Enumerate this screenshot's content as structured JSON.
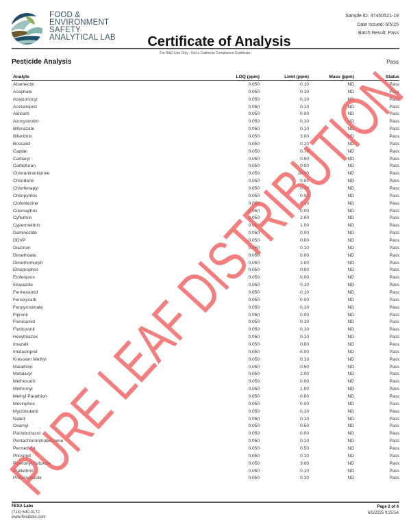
{
  "header": {
    "lab_name_lines": [
      "FOOD &",
      "ENVIRONMENT",
      "SAFETY",
      "ANALYTICAL LAB"
    ],
    "sample_id": "Sample ID: 47450521-19",
    "date_issued": "Date Issued: 6/5/25",
    "batch_result": "Batch Result: Pass",
    "title": "Certificate of Analysis",
    "disclaimer": "For R&D Use Only - Not a California Compliance Certificate."
  },
  "section": {
    "title": "Pesticide Analysis",
    "result": "Pass"
  },
  "table": {
    "columns": [
      "Analyte",
      "LOQ (ppm)",
      "Limit (ppm)",
      "Mass (ppm)",
      "Status"
    ],
    "rows": [
      [
        "Abamectin",
        "0.050",
        "0.10",
        "ND",
        "Pass"
      ],
      [
        "Acephate",
        "0.050",
        "0.10",
        "ND",
        "Pass"
      ],
      [
        "Acequinocyl",
        "0.050",
        "0.10",
        "ND",
        "Pass"
      ],
      [
        "Acetamiprid",
        "0.050",
        "0.10",
        "ND",
        "Pass"
      ],
      [
        "Aldicarb",
        "0.050",
        "0.00",
        "ND",
        "Pass"
      ],
      [
        "Azoxystrobin",
        "0.050",
        "0.10",
        "ND",
        "Pass"
      ],
      [
        "Bifenazate",
        "0.050",
        "0.10",
        "ND",
        "Pass"
      ],
      [
        "Bifenthrin",
        "0.050",
        "3.00",
        "ND",
        "Pass"
      ],
      [
        "Boscalid",
        "0.050",
        "0.10",
        "ND",
        "Pass"
      ],
      [
        "Captan",
        "0.050",
        "0.70",
        "ND",
        "Pass"
      ],
      [
        "Carbaryl",
        "0.050",
        "0.50",
        "ND",
        "Pass"
      ],
      [
        "Carbofuran",
        "0.050",
        "0.00",
        "ND",
        "Pass"
      ],
      [
        "Chlorantraniliprole",
        "0.050",
        "10.00",
        "ND",
        "Pass"
      ],
      [
        "Chlordane",
        "0.050",
        "0.00",
        "ND",
        "Pass"
      ],
      [
        "Chlorfenapyr",
        "0.050",
        "0.00",
        "ND",
        "Pass"
      ],
      [
        "Chlorpyrifos",
        "0.050",
        "0.00",
        "ND",
        "Pass"
      ],
      [
        "Clofentezine",
        "0.050",
        "0.10",
        "ND",
        "Pass"
      ],
      [
        "Coumaphos",
        "0.050",
        "0.00",
        "ND",
        "Pass"
      ],
      [
        "Cyfluthrin",
        "0.050",
        "2.00",
        "ND",
        "Pass"
      ],
      [
        "Cypermethrin",
        "0.050",
        "1.00",
        "ND",
        "Pass"
      ],
      [
        "Daminozide",
        "0.050",
        "0.00",
        "ND",
        "Pass"
      ],
      [
        "DDVP",
        "0.050",
        "0.00",
        "ND",
        "Pass"
      ],
      [
        "Diazinon",
        "0.050",
        "0.10",
        "ND",
        "Pass"
      ],
      [
        "Dimethoate",
        "0.050",
        "0.00",
        "ND",
        "Pass"
      ],
      [
        "Dimethomorph",
        "0.050",
        "2.00",
        "ND",
        "Pass"
      ],
      [
        "Ethoprophos",
        "0.050",
        "0.00",
        "ND",
        "Pass"
      ],
      [
        "Etofenprox",
        "0.050",
        "0.00",
        "ND",
        "Pass"
      ],
      [
        "Etoxazole",
        "0.050",
        "0.10",
        "ND",
        "Pass"
      ],
      [
        "Fenhexamid",
        "0.050",
        "0.10",
        "ND",
        "Pass"
      ],
      [
        "Fenoxycarb",
        "0.050",
        "0.00",
        "ND",
        "Pass"
      ],
      [
        "Fenpyroximate",
        "0.050",
        "0.10",
        "ND",
        "Pass"
      ],
      [
        "Fipronil",
        "0.050",
        "0.00",
        "ND",
        "Pass"
      ],
      [
        "Flonicamid",
        "0.050",
        "0.10",
        "ND",
        "Pass"
      ],
      [
        "Fludioxonil",
        "0.050",
        "0.10",
        "ND",
        "Pass"
      ],
      [
        "Hexythiazox",
        "0.050",
        "0.10",
        "ND",
        "Pass"
      ],
      [
        "Imazalil",
        "0.050",
        "0.00",
        "ND",
        "Pass"
      ],
      [
        "Imidacloprid",
        "0.050",
        "5.00",
        "ND",
        "Pass"
      ],
      [
        "Kresoxim Methyl",
        "0.050",
        "0.10",
        "ND",
        "Pass"
      ],
      [
        "Malathion",
        "0.050",
        "0.50",
        "ND",
        "Pass"
      ],
      [
        "Metalaxyl",
        "0.050",
        "2.00",
        "ND",
        "Pass"
      ],
      [
        "Methiocarb",
        "0.050",
        "0.00",
        "ND",
        "Pass"
      ],
      [
        "Methomyl",
        "0.050",
        "1.00",
        "ND",
        "Pass"
      ],
      [
        "Methyl Parathion",
        "0.050",
        "0.00",
        "ND",
        "Pass"
      ],
      [
        "Mevinphos",
        "0.050",
        "0.00",
        "ND",
        "Pass"
      ],
      [
        "Myclobutanil",
        "0.050",
        "0.10",
        "ND",
        "Pass"
      ],
      [
        "Naled",
        "0.050",
        "0.10",
        "ND",
        "Pass"
      ],
      [
        "Oxamyl",
        "0.050",
        "0.50",
        "ND",
        "Pass"
      ],
      [
        "Paclobutrazol",
        "0.050",
        "0.00",
        "ND",
        "Pass"
      ],
      [
        "Pentachloronitrobenzene",
        "0.050",
        "0.10",
        "ND",
        "Pass"
      ],
      [
        "Permethrin",
        "0.050",
        "0.50",
        "ND",
        "Pass"
      ],
      [
        "Phosmet",
        "0.050",
        "0.10",
        "ND",
        "Pass"
      ],
      [
        "Piperonyl Butoxide",
        "0.050",
        "3.00",
        "ND",
        "Pass"
      ],
      [
        "Prallethrin",
        "0.050",
        "0.10",
        "ND",
        "Pass"
      ],
      [
        "Propiconazole",
        "0.050",
        "0.10",
        "ND",
        "Pass"
      ]
    ]
  },
  "footer": {
    "company": "FESA Labs",
    "phone": "(714) 540-0172",
    "website": "www.fesalabs.com",
    "page": "Page 2 of 4",
    "timestamp": "6/5/2025 9:25:54"
  },
  "watermark": {
    "text": "PURE LEAF DISTRIBUTION",
    "color": "#ee5a5a"
  },
  "colors": {
    "logo_dark_blue": "#1f4e6b",
    "logo_teal": "#7fb3ad",
    "logo_green": "#8fae5a",
    "logo_brown": "#6b5a2e"
  }
}
